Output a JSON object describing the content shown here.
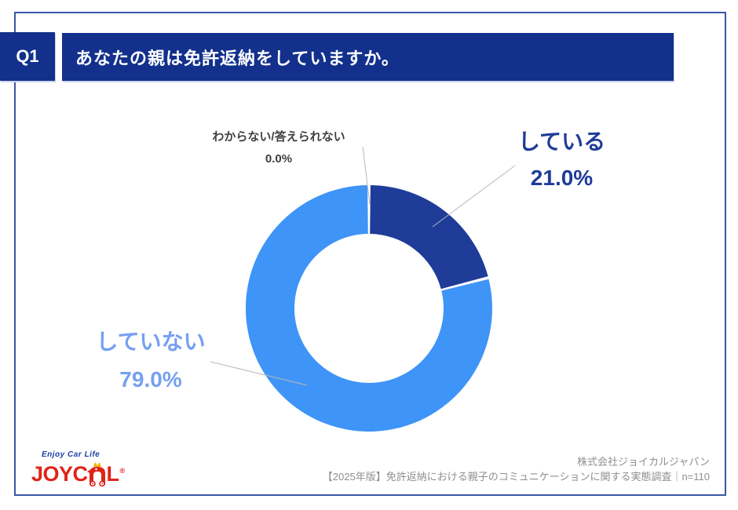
{
  "header": {
    "q_label": "Q1",
    "title": "あなたの親は免許返納をしていますか。",
    "banner_bg": "#12308c",
    "banner_text_color": "#ffffff"
  },
  "chart_data": {
    "type": "pie",
    "subtype": "donut",
    "title": "あなたの親は免許返納をしていますか。",
    "labels": [
      "している",
      "していない",
      "わからない/答えられない"
    ],
    "values": [
      21.0,
      79.0,
      0.0
    ],
    "unit": "%",
    "colors": [
      "#1e3c98",
      "#3e94f7",
      "#b8b8b8"
    ],
    "start_angle": "top",
    "direction": "clockwise",
    "inner_radius_ratio": 0.6,
    "n": 110,
    "legend": "none",
    "grid": "off"
  },
  "callouts": [
    {
      "label": "している",
      "pct": "21.0%",
      "color": "#1e3c98"
    },
    {
      "label": "していない",
      "pct": "79.0%",
      "color": "#76a0f2"
    },
    {
      "label": "わからない/答えられない",
      "pct": "0.0%",
      "color": "#3f3f3f"
    }
  ],
  "footer": {
    "logo": {
      "tagline": "Enjoy Car Life",
      "brand_left": "JOYC",
      "brand_right": "L",
      "reg": "®",
      "brand_color": "#e02319",
      "tagline_color": "#1c3ea8",
      "crown_color": "#f2b705"
    },
    "company": "株式会社ジョイカルジャパン",
    "survey": "【2025年版】免許返納における親子のコミュニケーションに関する実態調査｜n=110"
  }
}
